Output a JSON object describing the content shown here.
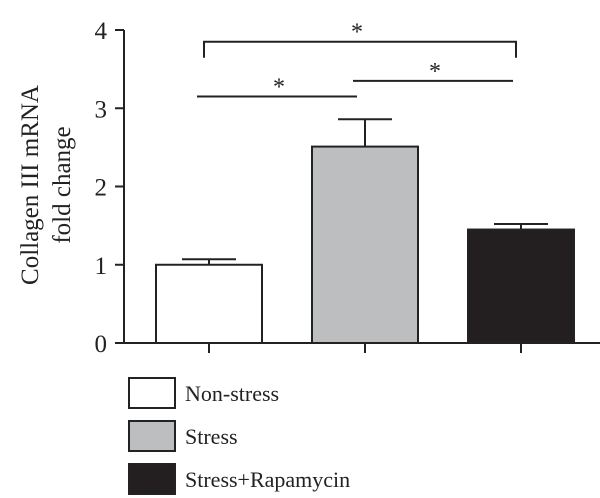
{
  "chart_data": {
    "type": "bar",
    "categories": [
      "Non-stress",
      "Stress",
      "Stress+Rapamycin"
    ],
    "values": [
      1.0,
      2.51,
      1.45
    ],
    "errors": [
      0.07,
      0.35,
      0.07
    ],
    "fills": [
      "#ffffff",
      "#bcbec0",
      "#231f20"
    ],
    "ylabel_lines": [
      "Collagen III mRNA",
      "fold change"
    ],
    "ylim": [
      0,
      4
    ],
    "yticks": [
      "0",
      "1",
      "2",
      "3",
      "4"
    ],
    "legend_position": "bottom-left",
    "significance": [
      {
        "from": 0,
        "to": 1,
        "label": "*",
        "level": 3.15
      },
      {
        "from": 1,
        "to": 2,
        "label": "*",
        "level": 3.35
      },
      {
        "from": 0,
        "to": 2,
        "label": "*",
        "level": 3.85
      }
    ]
  }
}
